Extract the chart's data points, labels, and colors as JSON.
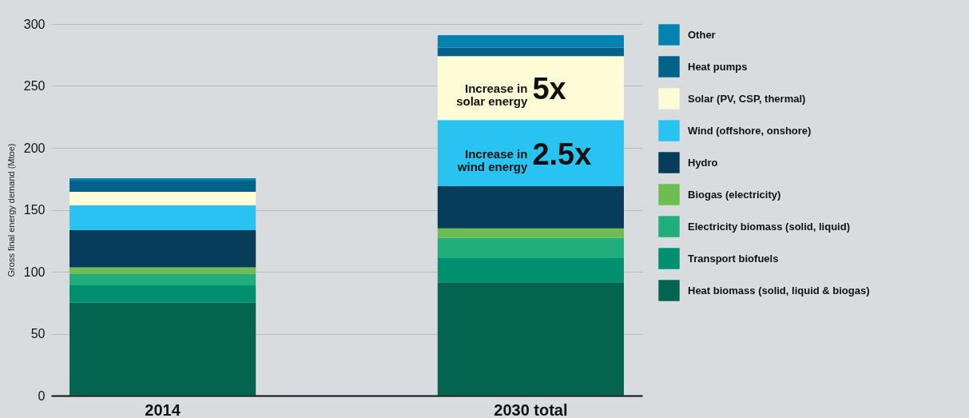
{
  "chart_data": {
    "type": "bar",
    "stacked": true,
    "ylabel": "Gross final energy demand (Mtoe)",
    "categories": [
      "2014",
      "2030 total"
    ],
    "ylim": [
      0,
      300
    ],
    "yticks": [
      0,
      50,
      100,
      150,
      200,
      250,
      300
    ],
    "grid": "y",
    "legend": "right",
    "series": [
      {
        "name": "Heat biomass (solid, liquid & biogas)",
        "color": "#03654f",
        "values": [
          75,
          91.5
        ]
      },
      {
        "name": "Transport biofuels",
        "color": "#009070",
        "values": [
          14,
          19.5
        ]
      },
      {
        "name": "Electricity biomass (solid, liquid)",
        "color": "#22ae7c",
        "values": [
          9,
          16.5
        ]
      },
      {
        "name": "Biogas (electricity)",
        "color": "#6dbd52",
        "values": [
          5.5,
          7.5
        ]
      },
      {
        "name": "Hydro",
        "color": "#073d5a",
        "values": [
          30,
          34
        ]
      },
      {
        "name": "Wind (offshore, onshore)",
        "color": "#29c3f2",
        "values": [
          20,
          53.5
        ]
      },
      {
        "name": "Solar (PV, CSP, thermal)",
        "color": "#fefbd7",
        "values": [
          11,
          51.5
        ]
      },
      {
        "name": "Heat pumps",
        "color": "#02628a",
        "values": [
          9,
          7
        ]
      },
      {
        "name": "Other",
        "color": "#0483b0",
        "values": [
          2,
          10
        ]
      }
    ],
    "annotations": [
      "Increase in\nsolar energy",
      "5x",
      "Increase in\nwind energy",
      "2.5x"
    ]
  }
}
